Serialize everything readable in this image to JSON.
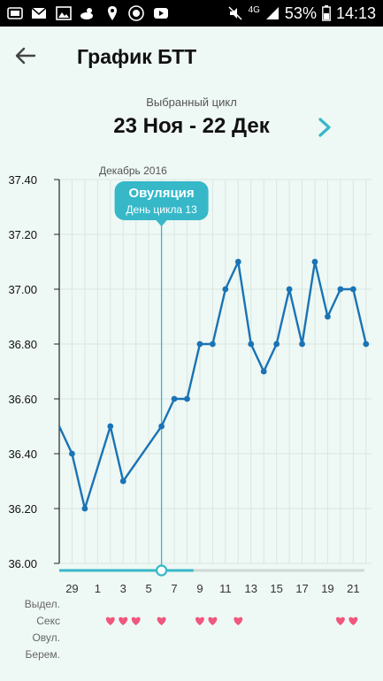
{
  "status_bar": {
    "network": "4G",
    "battery": "53%",
    "time": "14:13"
  },
  "header": {
    "title": "График БТТ"
  },
  "cycle": {
    "caption": "Выбранный цикл",
    "range": "23 Ноя - 22 Дек"
  },
  "colors": {
    "line": "#1a73b5",
    "accent": "#36b8c8",
    "heart": "#f0577e",
    "grid": "#d9e6e1"
  },
  "chart_data": {
    "type": "line",
    "y_tick_labels": [
      "36.00",
      "36.20",
      "36.40",
      "36.60",
      "36.80",
      "37.00",
      "37.20",
      "37.40"
    ],
    "ylim": [
      36.0,
      37.4
    ],
    "month_label": "Декабрь 2016",
    "x_tick_labels": [
      "29",
      "1",
      "3",
      "5",
      "7",
      "9",
      "11",
      "13",
      "15",
      "17",
      "19",
      "21"
    ],
    "x_days": [
      "27 Ноя",
      "28 Ноя",
      "29 Ноя",
      "30 Ноя",
      "1 Дек",
      "2 Дек",
      "3 Дек",
      "4 Дек",
      "5 Дек",
      "6 Дек",
      "7 Дек",
      "8 Дек",
      "9 Дек",
      "10 Дек",
      "11 Дек",
      "12 Дек",
      "13 Дек",
      "14 Дек",
      "15 Дек",
      "16 Дек",
      "17 Дек",
      "18 Дек",
      "19 Дек",
      "20 Дек",
      "21 Дек"
    ],
    "series": [
      {
        "values": [
          36.5,
          36.4,
          36.2,
          null,
          36.5,
          36.3,
          null,
          null,
          36.5,
          36.6,
          36.6,
          36.8,
          36.8,
          37.0,
          37.1,
          36.8,
          36.7,
          36.8,
          37.0,
          36.8,
          37.1,
          36.9,
          37.0,
          37.0,
          36.8
        ]
      }
    ],
    "ovulation": {
      "title": "Овуляция",
      "subtitle": "День цикла 13",
      "day": "5 Дек"
    },
    "rows": [
      {
        "label": "Выдел.",
        "marks": []
      },
      {
        "label": "Секс",
        "marks": [
          "1 Дек",
          "2 Дек",
          "3 Дек",
          "5 Дек",
          "8 Дек",
          "9 Дек",
          "11 Дек",
          "19 Дек",
          "20 Дек"
        ]
      },
      {
        "label": "Овул.",
        "marks": []
      },
      {
        "label": "Берем.",
        "marks": []
      }
    ]
  }
}
